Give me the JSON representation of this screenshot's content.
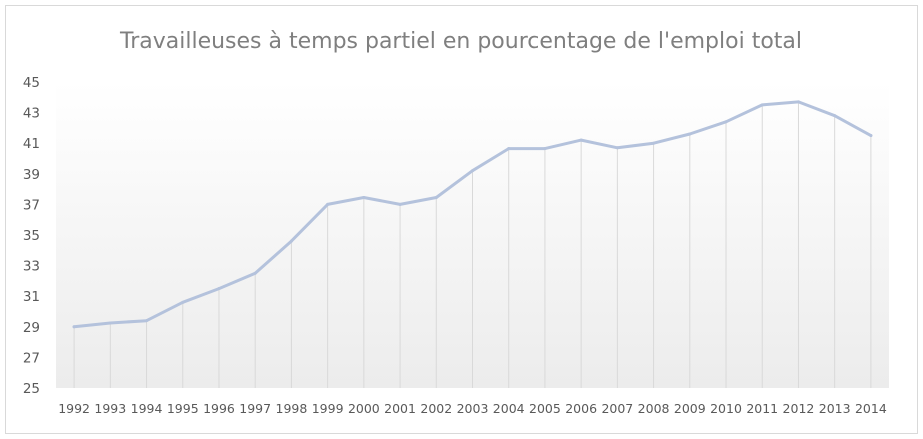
{
  "chart_data": {
    "type": "line",
    "title": "Travailleuses à temps partiel en pourcentage de l'emploi total",
    "xlabel": "",
    "ylabel": "",
    "categories": [
      "1992",
      "1993",
      "1994",
      "1995",
      "1996",
      "1997",
      "1998",
      "1999",
      "2000",
      "2001",
      "2002",
      "2003",
      "2004",
      "2005",
      "2006",
      "2007",
      "2008",
      "2009",
      "2010",
      "2011",
      "2012",
      "2013",
      "2014"
    ],
    "series": [
      {
        "values": [
          29.0,
          29.25,
          29.4,
          30.6,
          31.5,
          32.5,
          34.6,
          37.0,
          37.45,
          37.0,
          37.45,
          39.2,
          40.65,
          40.65,
          41.2,
          40.7,
          41.0,
          41.6,
          42.4,
          43.5,
          43.7,
          42.8,
          41.5
        ]
      }
    ],
    "ylim": [
      25,
      45
    ],
    "yticks": [
      "25",
      "27",
      "29",
      "31",
      "33",
      "35",
      "37",
      "39",
      "41",
      "43",
      "45"
    ],
    "grid": "vertical-drop-lines",
    "legend": "none",
    "line_color": "#b4c2dc",
    "drop_line_color": "#d9d9d9"
  }
}
